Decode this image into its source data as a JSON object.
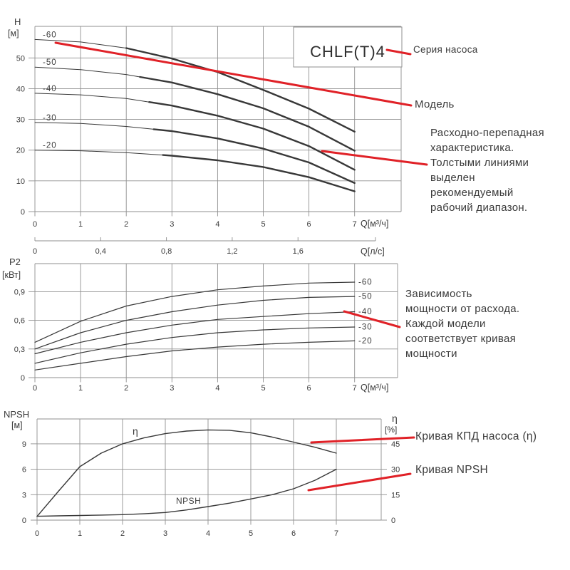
{
  "colors": {
    "red": "#e02127",
    "curve": "#383838",
    "grid": "#8f8f8f",
    "text": "#3b3b3b",
    "box_border": "#8f8f8f",
    "box_bg": "#ffffff"
  },
  "series_box": {
    "label": "CHLF(T)4"
  },
  "callouts": {
    "series": "Серия насоса",
    "model": "Модель",
    "flow_note": "Расходно-перепадная\nхарактеристика.\nТолстыми линиями\nвыделен\nрекомендуемый\nрабочий диапазон.",
    "power_note": "Зависимость\nмощности от расхода.\nКаждой модели\nсоответствует кривая\nмощности",
    "efficiency": "Кривая КПД насоса (η)",
    "npsh": "Кривая NPSH"
  },
  "chart_data": [
    {
      "id": "head_vs_flow",
      "type": "line",
      "y_axis": {
        "title": "H",
        "unit": "[м]",
        "range": [
          0,
          60
        ],
        "ticks": [
          {
            "v": 0,
            "label": "0"
          },
          {
            "v": 10,
            "label": "10"
          },
          {
            "v": 20,
            "label": "20"
          },
          {
            "v": 30,
            "label": "30"
          },
          {
            "v": 40,
            "label": "40"
          },
          {
            "v": 50,
            "label": "50"
          }
        ]
      },
      "x_axis": {
        "title": "Q[м³/ч]",
        "range": [
          0,
          8
        ],
        "ticks": [
          {
            "v": 0,
            "label": "0"
          },
          {
            "v": 1,
            "label": "1"
          },
          {
            "v": 2,
            "label": "2"
          },
          {
            "v": 3,
            "label": "3"
          },
          {
            "v": 4,
            "label": "4"
          },
          {
            "v": 5,
            "label": "5"
          },
          {
            "v": 6,
            "label": "6"
          },
          {
            "v": 7,
            "label": "7"
          }
        ]
      },
      "secondary_x_axis": {
        "title": "Q[л/с]",
        "ticks": [
          {
            "v": 0,
            "label": "0"
          },
          {
            "v": 0.4,
            "label": "0,4"
          },
          {
            "v": 0.8,
            "label": "0,8"
          },
          {
            "v": 1.2,
            "label": "1,2"
          },
          {
            "v": 1.6,
            "label": "1,6"
          }
        ]
      },
      "x": [
        0,
        1,
        2,
        3,
        4,
        5,
        6,
        7
      ],
      "series": [
        {
          "name": "-60",
          "values": [
            56,
            55.2,
            53.2,
            49.8,
            45.4,
            39.6,
            33.5,
            26
          ],
          "thick_from": 2.0
        },
        {
          "name": "-50",
          "values": [
            47,
            46.2,
            44.6,
            42.0,
            38.2,
            33.6,
            27.6,
            19.8
          ],
          "thick_from": 2.3
        },
        {
          "name": "-40",
          "values": [
            38.5,
            38,
            36.8,
            34.5,
            31.2,
            27.0,
            21.3,
            13.6
          ],
          "thick_from": 2.5
        },
        {
          "name": "-30",
          "values": [
            29,
            28.7,
            27.7,
            26.2,
            23.8,
            20.5,
            16.0,
            9.3
          ],
          "thick_from": 2.6
        },
        {
          "name": "-20",
          "values": [
            20,
            19.8,
            19.2,
            18.2,
            16.7,
            14.5,
            11.2,
            6.6
          ],
          "thick_from": 2.8
        }
      ]
    },
    {
      "id": "power_vs_flow",
      "type": "line",
      "y_axis": {
        "title": "P2",
        "unit": "[кВт]",
        "range": [
          0,
          1.2
        ],
        "ticks": [
          {
            "v": 0,
            "label": "0"
          },
          {
            "v": 0.3,
            "label": "0,3"
          },
          {
            "v": 0.6,
            "label": "0,6"
          },
          {
            "v": 0.9,
            "label": "0,9"
          }
        ]
      },
      "x_axis": {
        "title": "Q[м³/ч]",
        "range": [
          0,
          8
        ],
        "ticks": [
          {
            "v": 0,
            "label": "0"
          },
          {
            "v": 1,
            "label": "1"
          },
          {
            "v": 2,
            "label": "2"
          },
          {
            "v": 3,
            "label": "3"
          },
          {
            "v": 4,
            "label": "4"
          },
          {
            "v": 5,
            "label": "5"
          },
          {
            "v": 6,
            "label": "6"
          },
          {
            "v": 7,
            "label": "7"
          }
        ]
      },
      "x": [
        0,
        1,
        2,
        3,
        4,
        5,
        6,
        7
      ],
      "series": [
        {
          "name": "-60",
          "values": [
            0.37,
            0.59,
            0.75,
            0.85,
            0.92,
            0.96,
            0.99,
            1.0
          ]
        },
        {
          "name": "-50",
          "values": [
            0.3,
            0.47,
            0.6,
            0.69,
            0.76,
            0.81,
            0.84,
            0.85
          ]
        },
        {
          "name": "-40",
          "values": [
            0.25,
            0.37,
            0.47,
            0.55,
            0.61,
            0.64,
            0.67,
            0.69
          ]
        },
        {
          "name": "-30",
          "values": [
            0.15,
            0.26,
            0.35,
            0.42,
            0.47,
            0.5,
            0.52,
            0.53
          ]
        },
        {
          "name": "-20",
          "values": [
            0.08,
            0.15,
            0.22,
            0.28,
            0.32,
            0.35,
            0.37,
            0.385
          ]
        }
      ]
    },
    {
      "id": "npsh_and_efficiency",
      "type": "line",
      "y_axis": {
        "title": "NPSH",
        "unit": "[м]",
        "range": [
          0,
          12
        ],
        "ticks": [
          {
            "v": 0,
            "label": "0"
          },
          {
            "v": 3,
            "label": "3"
          },
          {
            "v": 6,
            "label": "6"
          },
          {
            "v": 9,
            "label": "9"
          }
        ]
      },
      "y2_axis": {
        "title": "η",
        "unit": "[%]",
        "range": [
          0,
          60
        ],
        "ticks": [
          {
            "v": 0,
            "label": "0"
          },
          {
            "v": 15,
            "label": "15"
          },
          {
            "v": 30,
            "label": "30"
          },
          {
            "v": 45,
            "label": "45"
          }
        ]
      },
      "x_axis": {
        "title": "",
        "range": [
          0,
          8
        ],
        "ticks": [
          {
            "v": 0,
            "label": "0"
          },
          {
            "v": 1,
            "label": "1"
          },
          {
            "v": 2,
            "label": "2"
          },
          {
            "v": 3,
            "label": "3"
          },
          {
            "v": 4,
            "label": "4"
          },
          {
            "v": 5,
            "label": "5"
          },
          {
            "v": 6,
            "label": "6"
          },
          {
            "v": 7,
            "label": "7"
          }
        ]
      },
      "series": [
        {
          "name": "η",
          "axis": "right",
          "unit": "%",
          "x": [
            0,
            0.5,
            1,
            1.5,
            2,
            2.5,
            3,
            3.5,
            4,
            4.5,
            5,
            5.5,
            6,
            6.5,
            7
          ],
          "values": [
            2.2,
            17,
            31.5,
            39.5,
            45,
            48.5,
            51,
            52.5,
            53.2,
            53,
            51.5,
            49,
            46,
            43,
            39.5
          ]
        },
        {
          "name": "NPSH",
          "axis": "left",
          "unit": "м",
          "x": [
            0,
            0.5,
            1,
            1.5,
            2,
            2.5,
            3,
            3.5,
            4,
            4.5,
            5,
            5.5,
            6,
            6.5,
            7
          ],
          "values": [
            0.45,
            0.5,
            0.55,
            0.6,
            0.65,
            0.75,
            0.9,
            1.2,
            1.6,
            2.0,
            2.5,
            3.0,
            3.7,
            4.7,
            6.0
          ]
        }
      ]
    }
  ]
}
